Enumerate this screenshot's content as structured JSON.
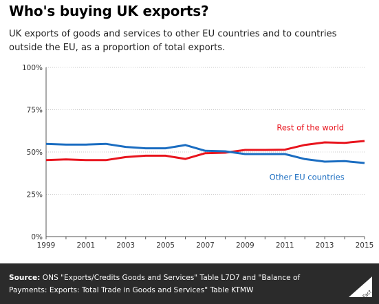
{
  "header": {
    "title": "Who's buying UK exports?",
    "subtitle": "UK exports of goods and services to other EU countries and to countries outside the EU, as a proportion of total exports."
  },
  "footer": {
    "source_label": "Source:",
    "source_text": " ONS \"Exports/Credits Goods and Services\" Table L7D7 and \"Balance of Payments: Exports: Total Trade in Goods and Services\" Table KTMW",
    "brand_text": "Full Fact",
    "background": "#2b2b2b"
  },
  "colors": {
    "rest_of_world": "#e8141d",
    "other_eu": "#1b6dc1"
  },
  "chart_data": {
    "type": "line",
    "title": "Who's buying UK exports?",
    "subtitle": "UK exports of goods and services to other EU countries and to countries outside the EU, as a proportion of total exports.",
    "x": [
      1999,
      2000,
      2001,
      2002,
      2003,
      2004,
      2005,
      2006,
      2007,
      2008,
      2009,
      2010,
      2011,
      2012,
      2013,
      2014,
      2015
    ],
    "x_ticks": [
      "1999",
      "2001",
      "2003",
      "2005",
      "2007",
      "2009",
      "2011",
      "2013",
      "2015"
    ],
    "y_ticks": [
      "0%",
      "25%",
      "50%",
      "75%",
      "100%"
    ],
    "ylim": [
      0,
      100
    ],
    "xlim": [
      1999,
      2015
    ],
    "grid": "horizontal dotted",
    "series": [
      {
        "name": "Rest of the world",
        "color": "#e8141d",
        "values": [
          45.2,
          45.6,
          45.2,
          45.2,
          47.0,
          47.8,
          47.8,
          45.9,
          49.3,
          49.6,
          51.2,
          51.2,
          51.4,
          54.2,
          55.7,
          55.4,
          56.5
        ]
      },
      {
        "name": "Other EU countries",
        "color": "#1b6dc1",
        "values": [
          54.8,
          54.4,
          54.4,
          54.8,
          53.0,
          52.2,
          52.2,
          54.1,
          50.7,
          50.4,
          48.8,
          48.8,
          48.8,
          45.8,
          44.3,
          44.6,
          43.5
        ]
      }
    ]
  }
}
